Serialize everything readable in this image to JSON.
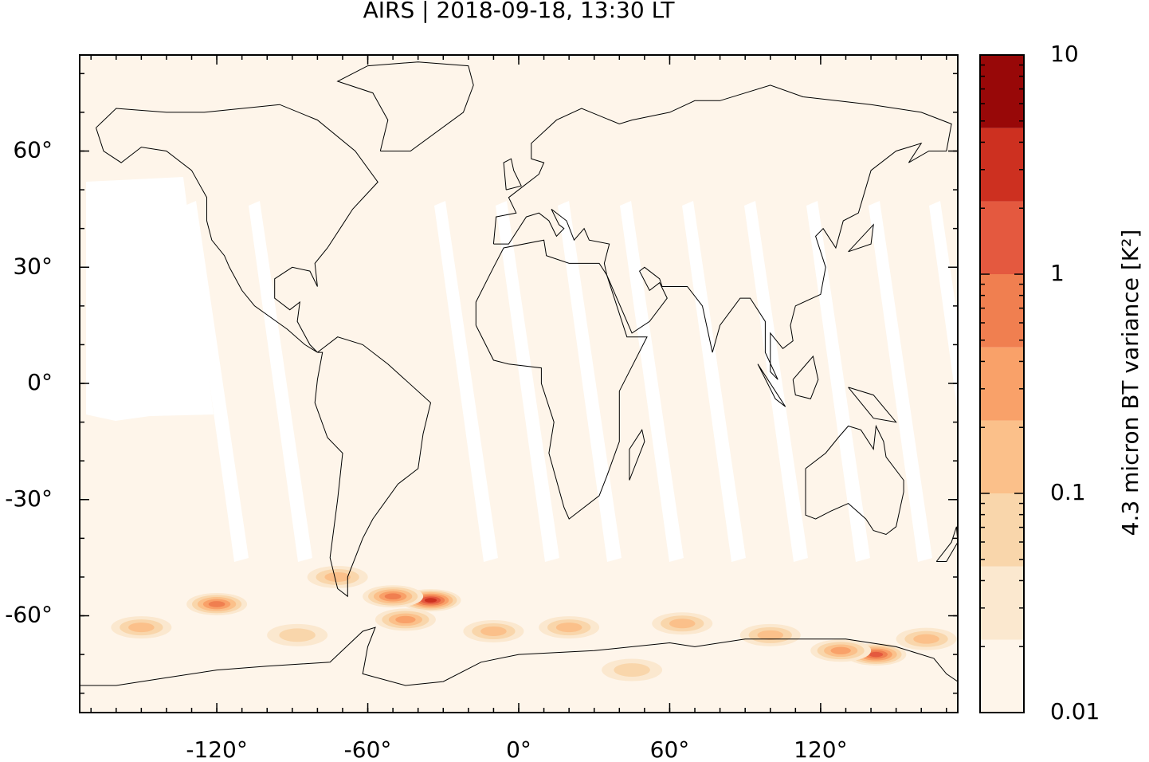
{
  "chart_data": {
    "type": "map",
    "title": "AIRS | 2018-09-18, 13:30 LT",
    "xlim": [
      -174.5,
      174.5
    ],
    "ylim": [
      -85,
      84.8
    ],
    "xticks": [
      {
        "value": -120,
        "label": "-120°"
      },
      {
        "value": -60,
        "label": "-60°"
      },
      {
        "value": 0,
        "label": "0°"
      },
      {
        "value": 60,
        "label": "60°"
      },
      {
        "value": 120,
        "label": "120°"
      }
    ],
    "yticks": [
      {
        "value": -60,
        "label": "-60°"
      },
      {
        "value": -30,
        "label": "-30°"
      },
      {
        "value": 0,
        "label": "0°"
      },
      {
        "value": 30,
        "label": "30°"
      },
      {
        "value": 60,
        "label": "60°"
      }
    ],
    "colorbar": {
      "label": "4.3 micron BT variance [K²]",
      "log": true,
      "lim": [
        0.01,
        10
      ],
      "ticks": [
        0.01,
        0.1,
        1,
        10
      ],
      "levels": [
        0.01,
        0.0215,
        0.0464,
        0.1,
        0.215,
        0.464,
        1,
        2.15,
        4.64,
        10
      ],
      "colors": [
        "#fef5ea",
        "#fbe8cf",
        "#f9d6ab",
        "#fbc08a",
        "#f9a169",
        "#f07f50",
        "#e4593f",
        "#cd3020",
        "#980808"
      ]
    },
    "features": [
      {
        "lon": -35,
        "lat": -56,
        "value": 3
      },
      {
        "lon": -50,
        "lat": -55,
        "value": 0.6
      },
      {
        "lon": -45,
        "lat": -61,
        "value": 0.3
      },
      {
        "lon": -120,
        "lat": -57,
        "value": 0.5
      },
      {
        "lon": -150,
        "lat": -63,
        "value": 0.2
      },
      {
        "lon": 142,
        "lat": -70,
        "value": 1.2
      },
      {
        "lon": 128,
        "lat": -69,
        "value": 0.3
      },
      {
        "lon": 65,
        "lat": -62,
        "value": 0.15
      },
      {
        "lon": 20,
        "lat": -63,
        "value": 0.2
      },
      {
        "lon": -10,
        "lat": -64,
        "value": 0.15
      },
      {
        "lon": -72,
        "lat": -50,
        "value": 0.1
      },
      {
        "lon": 100,
        "lat": -65,
        "value": 0.12
      },
      {
        "lon": 162,
        "lat": -66,
        "value": 0.15
      },
      {
        "lon": -88,
        "lat": -65,
        "value": 0.08
      },
      {
        "lon": 45,
        "lat": -74,
        "value": 0.08
      }
    ]
  }
}
